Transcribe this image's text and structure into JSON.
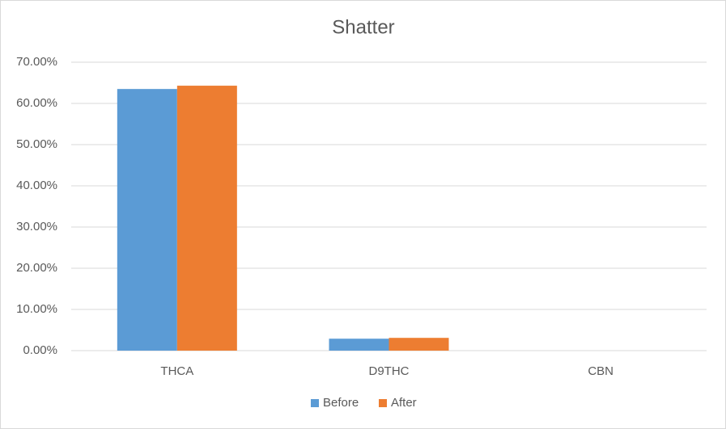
{
  "chart_data": {
    "type": "bar",
    "title": "Shatter",
    "categories": [
      "THCA",
      "D9THC",
      "CBN"
    ],
    "series": [
      {
        "name": "Before",
        "color": "#5b9bd5",
        "values": [
          63.5,
          2.9,
          0
        ]
      },
      {
        "name": "After",
        "color": "#ed7d31",
        "values": [
          64.3,
          3.1,
          0
        ]
      }
    ],
    "ylim": [
      0,
      70
    ],
    "yticks": [
      {
        "value": 0,
        "label": "0.00%"
      },
      {
        "value": 10,
        "label": "10.00%"
      },
      {
        "value": 20,
        "label": "20.00%"
      },
      {
        "value": 30,
        "label": "30.00%"
      },
      {
        "value": 40,
        "label": "40.00%"
      },
      {
        "value": 50,
        "label": "50.00%"
      },
      {
        "value": 60,
        "label": "60.00%"
      },
      {
        "value": 70,
        "label": "70.00%"
      }
    ],
    "grid": true,
    "legend": "bottom"
  }
}
